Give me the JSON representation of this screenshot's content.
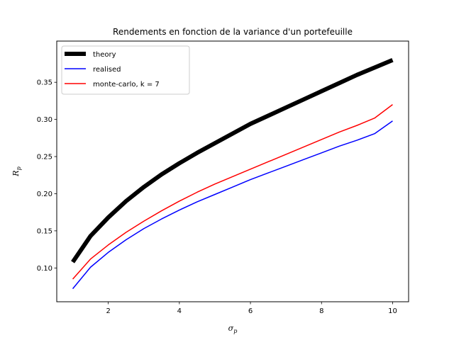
{
  "chart_data": {
    "type": "line",
    "title": "Rendements en fonction de la variance d'un portefeuille",
    "xlabel": "σp",
    "ylabel": "Rp",
    "xlim": [
      0.55,
      10.45
    ],
    "ylim": [
      0.0545,
      0.4055
    ],
    "xticks": [
      2,
      4,
      6,
      8,
      10
    ],
    "yticks": [
      0.1,
      0.15,
      0.2,
      0.25,
      0.3,
      0.35
    ],
    "ytick_labels": [
      "0.10",
      "0.15",
      "0.20",
      "0.25",
      "0.30",
      "0.35"
    ],
    "grid": false,
    "legend_position": "upper-left",
    "series": [
      {
        "name": "theory",
        "color": "#000000",
        "line_width": "thick",
        "x": [
          1,
          1.5,
          2,
          2.5,
          3,
          3.5,
          4,
          4.5,
          5,
          5.5,
          6,
          6.5,
          7,
          7.5,
          8,
          8.5,
          9,
          9.5,
          10
        ],
        "values": [
          0.108,
          0.143,
          0.168,
          0.19,
          0.209,
          0.226,
          0.241,
          0.255,
          0.268,
          0.281,
          0.294,
          0.305,
          0.316,
          0.327,
          0.338,
          0.349,
          0.36,
          0.37,
          0.38
        ]
      },
      {
        "name": "realised",
        "color": "#0000ff",
        "line_width": "normal",
        "x": [
          1,
          1.5,
          2,
          2.5,
          3,
          3.5,
          4,
          4.5,
          5,
          5.5,
          6,
          6.5,
          7,
          7.5,
          8,
          8.5,
          9,
          9.5,
          10
        ],
        "values": [
          0.072,
          0.101,
          0.121,
          0.138,
          0.153,
          0.166,
          0.178,
          0.189,
          0.199,
          0.209,
          0.219,
          0.228,
          0.237,
          0.246,
          0.255,
          0.264,
          0.272,
          0.281,
          0.298
        ]
      },
      {
        "name": "monte-carlo, k = 7",
        "color": "#ff0000",
        "line_width": "normal",
        "x": [
          1,
          1.5,
          2,
          2.5,
          3,
          3.5,
          4,
          4.5,
          5,
          5.5,
          6,
          6.5,
          7,
          7.5,
          8,
          8.5,
          9,
          9.5,
          10
        ],
        "values": [
          0.085,
          0.112,
          0.131,
          0.148,
          0.163,
          0.177,
          0.19,
          0.202,
          0.213,
          0.223,
          0.233,
          0.243,
          0.253,
          0.263,
          0.273,
          0.283,
          0.292,
          0.302,
          0.32
        ]
      }
    ]
  }
}
